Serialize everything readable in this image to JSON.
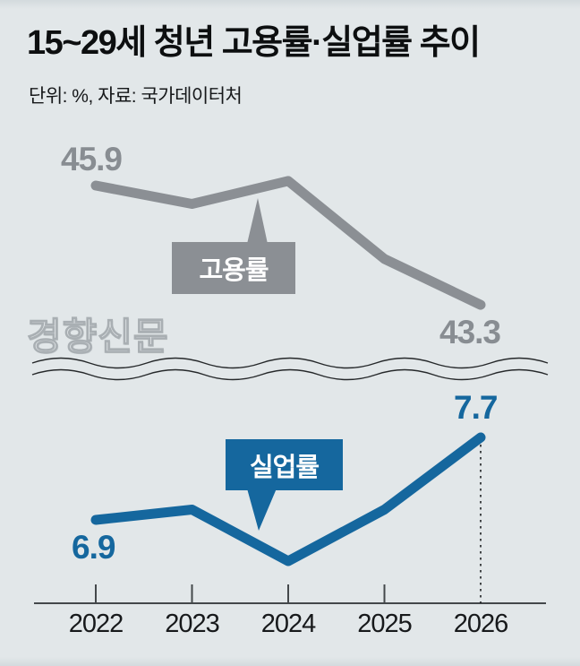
{
  "header": {
    "title": "15~29세 청년 고용률·실업률 추이",
    "subtitle": "단위: %, 자료: 국가데이터처"
  },
  "watermark": "경향신문",
  "colors": {
    "background": "#e2e7e9",
    "employment_gray": "#8b8f94",
    "unemployment_blue": "#15679e",
    "axis": "#44484b",
    "ink": "#0d0f10"
  },
  "chart_data": {
    "type": "line",
    "title": "15~29세 청년 고용률·실업률 추이",
    "unit_note": "단위: %",
    "source_note": "자료: 국가데이터처",
    "categories": [
      "2022",
      "2023",
      "2024",
      "2025",
      "2026"
    ],
    "series": [
      {
        "name": "고용률",
        "color": "#8b8f94",
        "values": [
          45.9,
          45.5,
          46.0,
          44.3,
          43.3
        ],
        "label_first": "45.9",
        "label_last": "43.3"
      },
      {
        "name": "실업률",
        "color": "#15679e",
        "values": [
          6.9,
          7.0,
          6.5,
          7.0,
          7.7
        ],
        "label_first": "6.9",
        "label_last": "7.7"
      }
    ],
    "legend_position": "callout-boxes-on-lines",
    "grid": false,
    "notes": "broken-scale wavy divider between employment (top) and unemployment (bottom) panels; dotted guide line at 2026 on unemployment series"
  }
}
